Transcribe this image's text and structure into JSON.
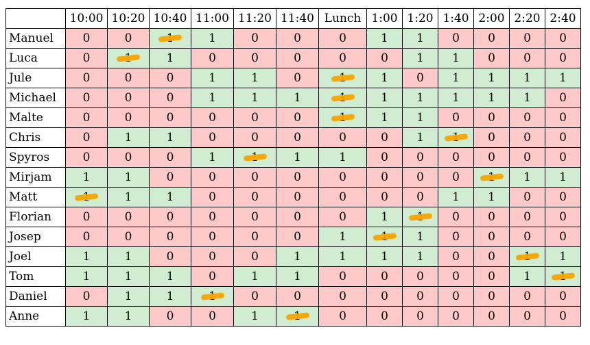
{
  "table": {
    "columns": [
      "10:00",
      "10:20",
      "10:40",
      "11:00",
      "11:20",
      "11:40",
      "Lunch",
      "1:00",
      "1:20",
      "1:40",
      "2:00",
      "2:20",
      "2:40"
    ],
    "colors": {
      "available": "#d1edd1",
      "unavailable": "#fdc9c9",
      "strike_mark": "#f7a400"
    },
    "rows": [
      {
        "name": "Manuel",
        "values": [
          "0",
          "0",
          "1",
          "1",
          "0",
          "0",
          "0",
          "1",
          "1",
          "0",
          "0",
          "0",
          "0"
        ],
        "struck": [
          2
        ]
      },
      {
        "name": "Luca",
        "values": [
          "0",
          "1",
          "1",
          "0",
          "0",
          "0",
          "0",
          "0",
          "1",
          "1",
          "0",
          "0",
          "0"
        ],
        "struck": [
          1
        ]
      },
      {
        "name": "Jule",
        "values": [
          "0",
          "0",
          "0",
          "1",
          "1",
          "0",
          "1",
          "1",
          "0",
          "1",
          "1",
          "1",
          "1"
        ],
        "struck": [
          6
        ]
      },
      {
        "name": "Michael",
        "values": [
          "0",
          "0",
          "0",
          "1",
          "1",
          "1",
          "1",
          "1",
          "1",
          "1",
          "1",
          "1",
          "0"
        ],
        "struck": [
          6
        ]
      },
      {
        "name": "Malte",
        "values": [
          "0",
          "0",
          "0",
          "0",
          "0",
          "0",
          "1",
          "1",
          "1",
          "0",
          "0",
          "0",
          "0"
        ],
        "struck": [
          6
        ]
      },
      {
        "name": "Chris",
        "values": [
          "0",
          "1",
          "1",
          "0",
          "0",
          "0",
          "0",
          "0",
          "1",
          "1",
          "0",
          "0",
          "0"
        ],
        "struck": [
          9
        ]
      },
      {
        "name": "Spyros",
        "values": [
          "0",
          "0",
          "0",
          "1",
          "1",
          "1",
          "1",
          "0",
          "0",
          "0",
          "0",
          "0",
          "0"
        ],
        "struck": [
          4
        ]
      },
      {
        "name": "Mirjam",
        "values": [
          "1",
          "1",
          "0",
          "0",
          "0",
          "0",
          "0",
          "0",
          "0",
          "0",
          "1",
          "1",
          "1"
        ],
        "struck": [
          10
        ]
      },
      {
        "name": "Matt",
        "values": [
          "1",
          "1",
          "1",
          "0",
          "0",
          "0",
          "0",
          "0",
          "0",
          "1",
          "1",
          "0",
          "0"
        ],
        "struck": [
          0
        ]
      },
      {
        "name": "Florian",
        "values": [
          "0",
          "0",
          "0",
          "0",
          "0",
          "0",
          "0",
          "1",
          "1",
          "0",
          "0",
          "0",
          "0"
        ],
        "struck": [
          8
        ]
      },
      {
        "name": "Josep",
        "values": [
          "0",
          "0",
          "0",
          "0",
          "0",
          "0",
          "1",
          "1",
          "1",
          "0",
          "0",
          "0",
          "0"
        ],
        "struck": [
          7
        ]
      },
      {
        "name": "Joel",
        "values": [
          "1",
          "1",
          "0",
          "0",
          "0",
          "1",
          "1",
          "1",
          "1",
          "0",
          "0",
          "1",
          "1"
        ],
        "struck": [
          11
        ]
      },
      {
        "name": "Tom",
        "values": [
          "1",
          "1",
          "1",
          "0",
          "1",
          "1",
          "0",
          "0",
          "0",
          "0",
          "0",
          "1",
          "1"
        ],
        "struck": [
          12
        ]
      },
      {
        "name": "Daniel",
        "values": [
          "0",
          "1",
          "1",
          "1",
          "0",
          "0",
          "0",
          "0",
          "0",
          "0",
          "0",
          "0",
          "0"
        ],
        "struck": [
          3
        ]
      },
      {
        "name": "Anne",
        "values": [
          "1",
          "1",
          "0",
          "0",
          "1",
          "1",
          "0",
          "0",
          "0",
          "0",
          "0",
          "0",
          "0"
        ],
        "struck": [
          5
        ]
      }
    ]
  }
}
